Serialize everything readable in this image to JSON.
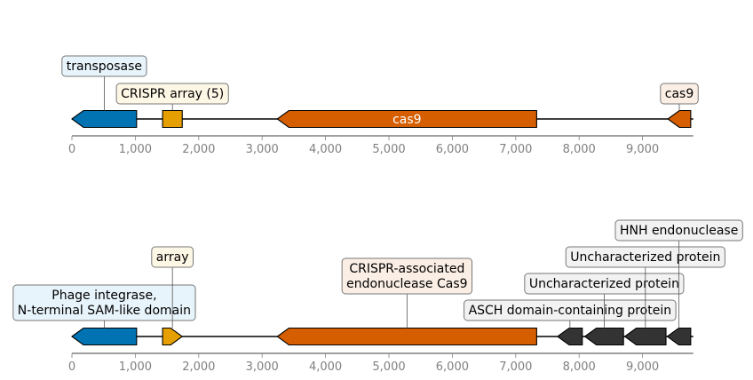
{
  "colors": {
    "blue": "#0173b2",
    "gold": "#e69f00",
    "orange": "#d55e00",
    "dark": "#333333",
    "box_blue": "#e8f4fb",
    "box_gold": "#fdf7e6",
    "box_orange": "#fbeee5",
    "box_gray": "#f2f2f2",
    "box_edge": "#777777"
  },
  "tracks": [
    {
      "id": "track-1",
      "length": 9800,
      "ticks": [
        {
          "value": 0,
          "label": "0"
        },
        {
          "value": 1000,
          "label": "1,000"
        },
        {
          "value": 2000,
          "label": "2,000"
        },
        {
          "value": 3000,
          "label": "3,000"
        },
        {
          "value": 4000,
          "label": "4,000"
        },
        {
          "value": 5000,
          "label": "5,000"
        },
        {
          "value": 6000,
          "label": "6,000"
        },
        {
          "value": 7000,
          "label": "7,000"
        },
        {
          "value": 8000,
          "label": "8,000"
        },
        {
          "value": 9000,
          "label": "9,000"
        }
      ],
      "features": [
        {
          "name": "transposase-gene",
          "label": "transposase",
          "start": 0,
          "end": 1020,
          "strand": -1,
          "color": "blue",
          "box": "box_blue",
          "level": 2
        },
        {
          "name": "crispr-array",
          "label": "CRISPR array (5)",
          "start": 1430,
          "end": 1740,
          "strand": 0,
          "color": "gold",
          "box": "box_gold",
          "level": 1
        },
        {
          "name": "cas9-gene",
          "label": "cas9",
          "start": 3240,
          "end": 7330,
          "strand": -1,
          "color": "orange",
          "box": "",
          "level": 0,
          "inside": true
        },
        {
          "name": "cas9-fragment",
          "label": "cas9",
          "start": 9400,
          "end": 9760,
          "strand": -1,
          "color": "orange",
          "box": "box_orange",
          "level": 1
        }
      ]
    },
    {
      "id": "track-2",
      "length": 9800,
      "ticks": [
        {
          "value": 0,
          "label": "0"
        },
        {
          "value": 1000,
          "label": "1,000"
        },
        {
          "value": 2000,
          "label": "2,000"
        },
        {
          "value": 3000,
          "label": "3,000"
        },
        {
          "value": 4000,
          "label": "4,000"
        },
        {
          "value": 5000,
          "label": "5,000"
        },
        {
          "value": 6000,
          "label": "6,000"
        },
        {
          "value": 7000,
          "label": "7,000"
        },
        {
          "value": 8000,
          "label": "8,000"
        },
        {
          "value": 9000,
          "label": "9,000"
        }
      ],
      "features": [
        {
          "name": "phage-integrase-gene",
          "label": [
            "Phage integrase,",
            "N-terminal SAM-like domain"
          ],
          "start": 0,
          "end": 1020,
          "strand": -1,
          "color": "blue",
          "box": "box_blue",
          "level": 1
        },
        {
          "name": "array-repeat",
          "label": "array",
          "start": 1430,
          "end": 1740,
          "strand": 1,
          "color": "gold",
          "box": "box_gold",
          "level": 3
        },
        {
          "name": "cas9-endonuclease-gene",
          "label": [
            "CRISPR-associated",
            "endonuclease Cas9"
          ],
          "start": 3240,
          "end": 7330,
          "strand": -1,
          "color": "orange",
          "box": "box_orange",
          "level": 2
        },
        {
          "name": "asch-domain-gene",
          "label": "ASCH domain-containing protein",
          "start": 7660,
          "end": 8050,
          "strand": -1,
          "color": "dark",
          "box": "box_gray",
          "level": 1
        },
        {
          "name": "uncharacterized-gene-1",
          "label": "Uncharacterized protein",
          "start": 8090,
          "end": 8700,
          "strand": -1,
          "color": "dark",
          "box": "box_gray",
          "level": 2
        },
        {
          "name": "uncharacterized-gene-2",
          "label": "Uncharacterized protein",
          "start": 8720,
          "end": 9370,
          "strand": -1,
          "color": "dark",
          "box": "box_gray",
          "level": 3
        },
        {
          "name": "hnh-endonuclease-gene",
          "label": "HNH endonuclease",
          "start": 9390,
          "end": 9760,
          "strand": -1,
          "color": "dark",
          "box": "box_gray",
          "level": 4
        }
      ]
    }
  ]
}
